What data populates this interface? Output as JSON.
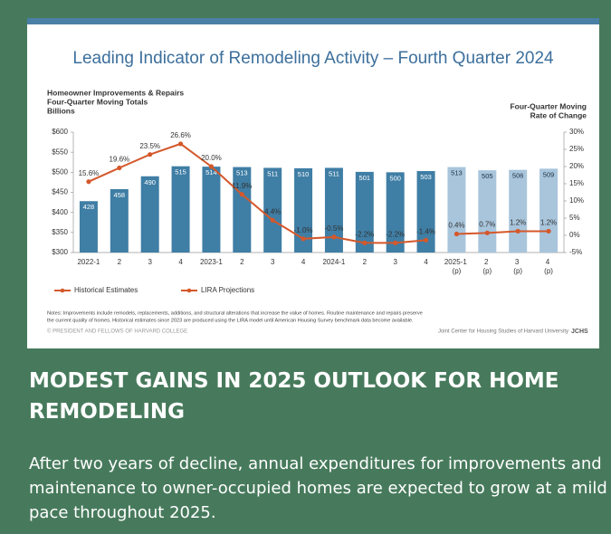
{
  "chart_data": {
    "type": "bar-line",
    "title": "Leading Indicator of Remodeling Activity – Fourth Quarter 2024",
    "y_label": [
      "Homeowner Improvements & Repairs",
      "Four-Quarter Moving Totals",
      "Billions"
    ],
    "y2_label": [
      "Four-Quarter Moving",
      "Rate of Change"
    ],
    "categories": [
      "2022-1",
      "2",
      "3",
      "4",
      "2023-1",
      "2",
      "3",
      "4",
      "2024-1",
      "2",
      "3",
      "4",
      "2025-1 (p)",
      "2 (p)",
      "3 (p)",
      "4 (p)"
    ],
    "bars": {
      "values": [
        428,
        458,
        490,
        515,
        514,
        513,
        511,
        510,
        511,
        501,
        500,
        503,
        513,
        505,
        506,
        509
      ],
      "colors": [
        "#3f7ea5",
        "#3f7ea5",
        "#3f7ea5",
        "#3f7ea5",
        "#3f7ea5",
        "#3f7ea5",
        "#3f7ea5",
        "#3f7ea5",
        "#3f7ea5",
        "#3f7ea5",
        "#3f7ea5",
        "#3f7ea5",
        "#a8c5dc",
        "#a8c5dc",
        "#a8c5dc",
        "#a8c5dc"
      ]
    },
    "series": [
      {
        "name": "Historical Estimates",
        "color": "#d4582b",
        "axis": "y2",
        "values": [
          15.6,
          19.6,
          23.5,
          26.6,
          20,
          11.9,
          4.4,
          -1.0,
          -0.5,
          -2.2,
          -2.2,
          -1.4,
          null,
          null,
          null,
          null
        ],
        "value_labels": [
          "15.6%",
          "19.6%",
          "23.5%",
          "26.6%",
          "20.0%",
          "11.9%",
          "4.4%",
          "-1.0%",
          "-0.5%",
          "-2.2%",
          "-2.2%",
          "-1.4%",
          null,
          null,
          null,
          null
        ]
      },
      {
        "name": "LIRA Projections",
        "color": "#d4582b",
        "axis": "y2",
        "values": [
          null,
          null,
          null,
          null,
          null,
          null,
          null,
          null,
          null,
          null,
          null,
          null,
          0.4,
          0.7,
          1.2,
          1.2
        ],
        "value_labels": [
          null,
          null,
          null,
          null,
          null,
          null,
          null,
          null,
          null,
          null,
          null,
          null,
          "0.4%",
          "0.7%",
          "1.2%",
          "1.2%"
        ]
      }
    ],
    "ylim": [
      300,
      600
    ],
    "yticks": [
      {
        "value": 300,
        "label": "$300"
      },
      {
        "value": 350,
        "label": "$350"
      },
      {
        "value": 400,
        "label": "$400"
      },
      {
        "value": 450,
        "label": "$450"
      },
      {
        "value": 500,
        "label": "$500"
      },
      {
        "value": 550,
        "label": "$550"
      },
      {
        "value": 600,
        "label": "$600"
      }
    ],
    "y2lim": [
      -5,
      30
    ],
    "y2ticks": [
      {
        "value": -5,
        "label": "-5%"
      },
      {
        "value": 0,
        "label": "0%"
      },
      {
        "value": 5,
        "label": "5%"
      },
      {
        "value": 10,
        "label": "10%"
      },
      {
        "value": 15,
        "label": "15%"
      },
      {
        "value": 20,
        "label": "20%"
      },
      {
        "value": 25,
        "label": "25%"
      },
      {
        "value": 30,
        "label": "30%"
      }
    ],
    "notes": [
      "Notes: Improvements include remodels, replacements, additions, and structural alterations that increase the value of homes. Routine maintenance and repairs preserve",
      "the current quality of homes. Historical estimates since 2023 are produced using the LIRA model until American Housing Survey benchmark data become available."
    ],
    "copyright": "© PRESIDENT AND FELLOWS OF HARVARD COLLEGE",
    "source": "Joint Center for Housing Studies of Harvard University",
    "logo": "JCHS"
  },
  "heading": "MODEST GAINS IN 2025 OUTLOOK FOR HOME REMODELING",
  "body": "After two years of decline, annual expenditures for improvements and maintenance to owner-occupied homes are expected to grow at a mild pace throughout 2025."
}
